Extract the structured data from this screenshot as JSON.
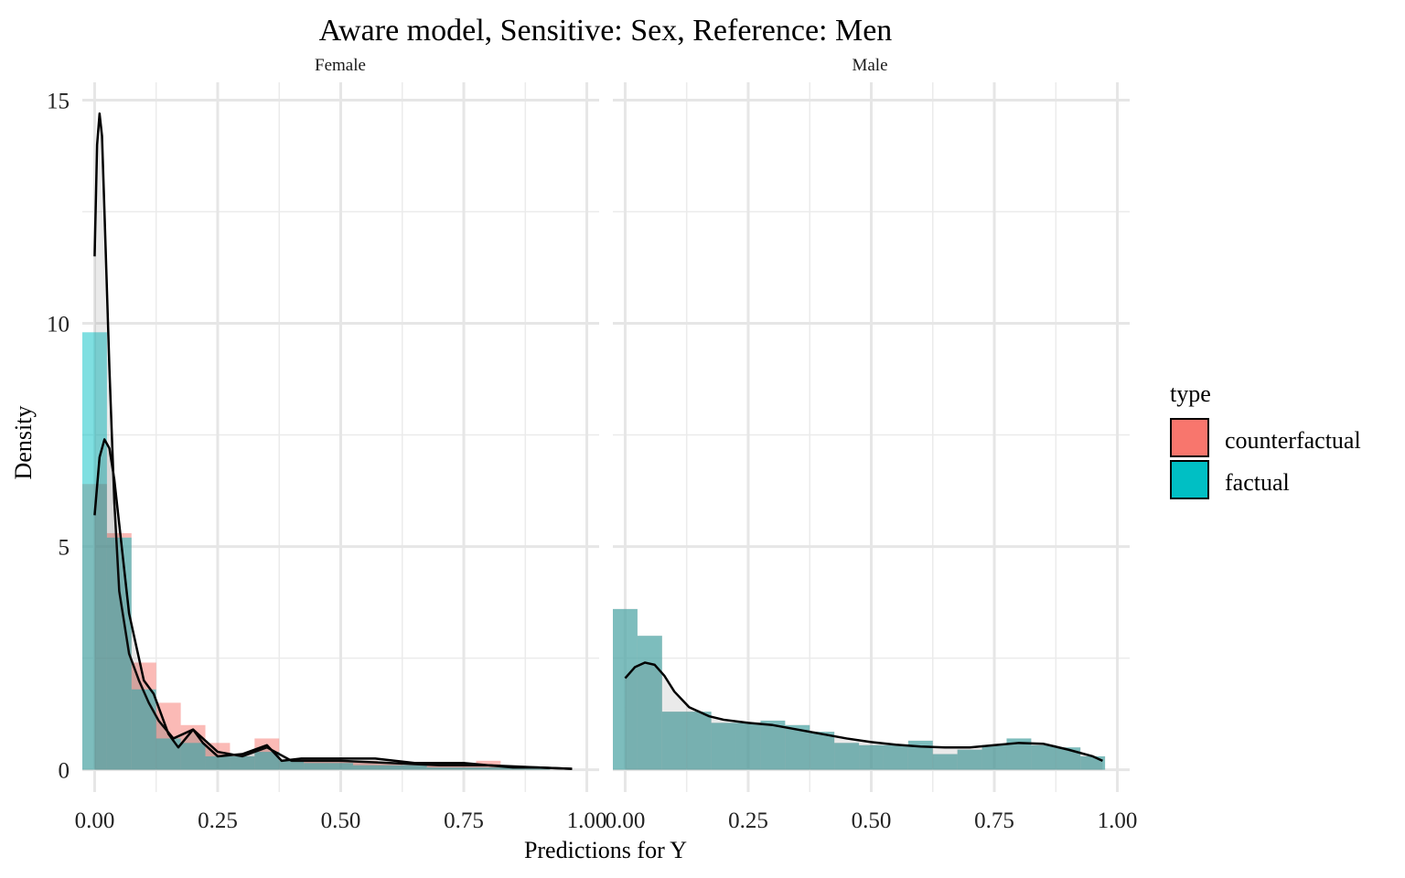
{
  "chart_data": {
    "type": "bar",
    "title": "Aware model, Sensitive: Sex, Reference: Men",
    "xlabel": "Predictions for Y",
    "ylabel": "Density",
    "xlim": [
      -0.025,
      1.025
    ],
    "ylim": [
      -0.5,
      15.4
    ],
    "x_ticks": [
      "0.00",
      "0.25",
      "0.50",
      "0.75",
      "1.00"
    ],
    "x_tick_values": [
      0,
      0.25,
      0.5,
      0.75,
      1.0
    ],
    "y_ticks": [
      "0",
      "5",
      "10",
      "15"
    ],
    "y_tick_values": [
      0,
      5,
      10,
      15
    ],
    "grid": true,
    "legend": {
      "title": "type",
      "placement": "right",
      "entries": [
        {
          "name": "counterfactual",
          "color": "#F8766D"
        },
        {
          "name": "factual",
          "color": "#00BFC4"
        }
      ]
    },
    "bin_width": 0.05,
    "bin_centers": [
      0.0,
      0.05,
      0.1,
      0.15,
      0.2,
      0.25,
      0.3,
      0.35,
      0.4,
      0.45,
      0.5,
      0.55,
      0.6,
      0.65,
      0.7,
      0.75,
      0.8,
      0.85,
      0.9,
      0.95
    ],
    "panels": [
      {
        "label": "Female",
        "series": [
          {
            "name": "counterfactual",
            "color": "#F8766D",
            "values": [
              6.4,
              5.3,
              2.4,
              1.5,
              1.0,
              0.6,
              0.3,
              0.7,
              0.2,
              0.2,
              0.2,
              0.2,
              0.15,
              0.1,
              0.1,
              0.15,
              0.2,
              0.05,
              0.05,
              0.0
            ]
          },
          {
            "name": "factual",
            "color": "#00BFC4",
            "values": [
              9.8,
              5.2,
              1.8,
              0.7,
              0.6,
              0.3,
              0.3,
              0.4,
              0.2,
              0.15,
              0.15,
              0.1,
              0.1,
              0.1,
              0.05,
              0.05,
              0.05,
              0.05,
              0.05,
              0.0
            ]
          }
        ],
        "density_curves": [
          {
            "name": "factual",
            "x": [
              0.0,
              0.005,
              0.01,
              0.015,
              0.02,
              0.03,
              0.04,
              0.05,
              0.07,
              0.09,
              0.11,
              0.13,
              0.16,
              0.2,
              0.25,
              0.3,
              0.35,
              0.4,
              0.5,
              0.6,
              0.7,
              0.8,
              0.9,
              0.97
            ],
            "y": [
              11.5,
              14.0,
              14.7,
              14.2,
              12.5,
              9.0,
              6.0,
              4.0,
              2.6,
              2.0,
              1.5,
              1.1,
              0.7,
              0.9,
              0.4,
              0.3,
              0.5,
              0.2,
              0.2,
              0.15,
              0.1,
              0.1,
              0.05,
              0.02
            ]
          },
          {
            "name": "counterfactual",
            "x": [
              0.0,
              0.01,
              0.02,
              0.03,
              0.04,
              0.05,
              0.07,
              0.1,
              0.12,
              0.15,
              0.17,
              0.2,
              0.22,
              0.25,
              0.3,
              0.35,
              0.38,
              0.42,
              0.5,
              0.57,
              0.65,
              0.75,
              0.8,
              0.85,
              0.9,
              0.97
            ],
            "y": [
              5.7,
              7.0,
              7.4,
              7.2,
              6.5,
              5.5,
              3.5,
              2.0,
              1.7,
              0.8,
              0.5,
              0.9,
              0.6,
              0.3,
              0.35,
              0.55,
              0.2,
              0.25,
              0.25,
              0.25,
              0.15,
              0.15,
              0.1,
              0.05,
              0.05,
              0.02
            ]
          }
        ]
      },
      {
        "label": "Male",
        "series": [
          {
            "name": "counterfactual",
            "color": "#F8766D",
            "values": [
              3.6,
              3.0,
              1.3,
              1.3,
              1.05,
              1.05,
              1.1,
              1.0,
              0.85,
              0.6,
              0.55,
              0.55,
              0.65,
              0.35,
              0.45,
              0.55,
              0.7,
              0.55,
              0.5,
              0.3
            ]
          },
          {
            "name": "factual",
            "color": "#00BFC4",
            "values": [
              3.6,
              3.0,
              1.3,
              1.3,
              1.05,
              1.05,
              1.1,
              1.0,
              0.85,
              0.6,
              0.55,
              0.55,
              0.65,
              0.35,
              0.45,
              0.55,
              0.7,
              0.55,
              0.5,
              0.3
            ]
          }
        ],
        "density_curves": [
          {
            "name": "combined",
            "x": [
              0.0,
              0.02,
              0.04,
              0.06,
              0.08,
              0.1,
              0.13,
              0.17,
              0.2,
              0.25,
              0.3,
              0.35,
              0.4,
              0.45,
              0.5,
              0.55,
              0.6,
              0.65,
              0.7,
              0.75,
              0.8,
              0.85,
              0.9,
              0.95,
              0.97
            ],
            "y": [
              2.05,
              2.3,
              2.4,
              2.35,
              2.1,
              1.75,
              1.4,
              1.2,
              1.12,
              1.05,
              1.0,
              0.9,
              0.8,
              0.7,
              0.62,
              0.56,
              0.52,
              0.5,
              0.5,
              0.55,
              0.6,
              0.58,
              0.45,
              0.3,
              0.2
            ]
          }
        ]
      }
    ]
  }
}
